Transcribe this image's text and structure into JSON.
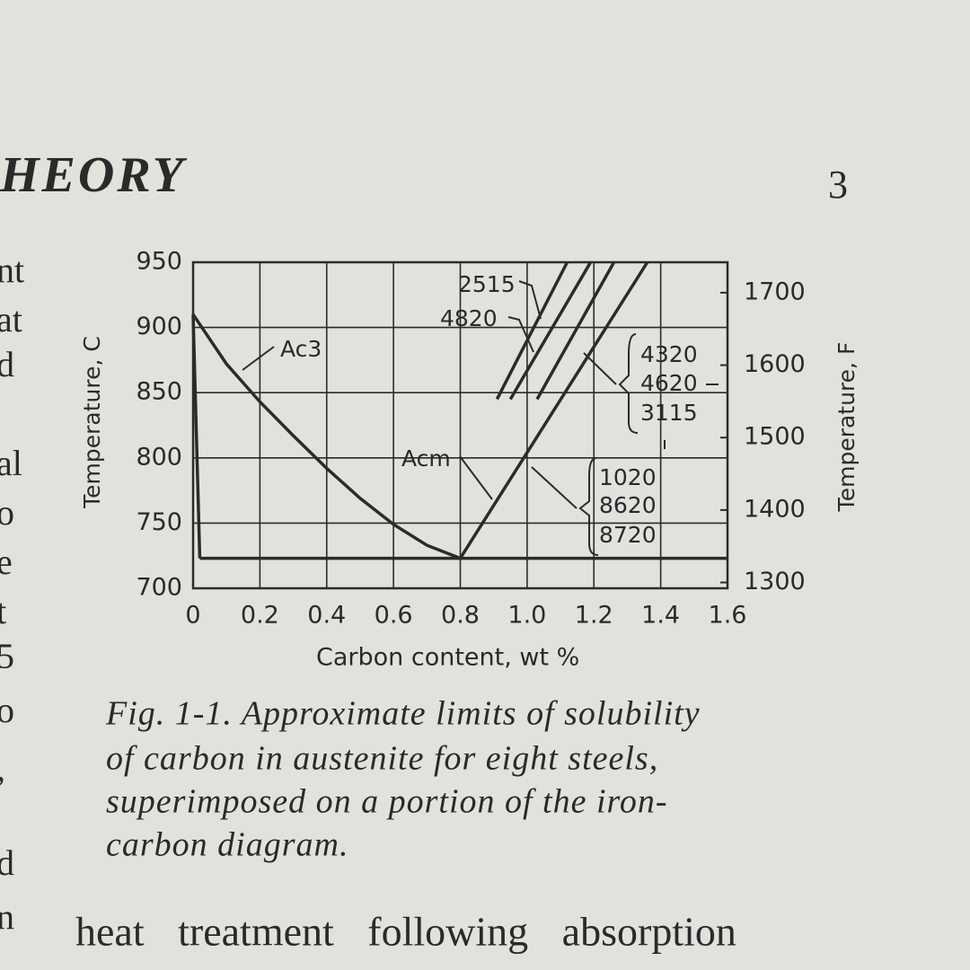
{
  "header": {
    "title": "HEORY",
    "page_number": "3"
  },
  "margin_fragments": [
    "nt",
    "at",
    "d",
    "al",
    "o",
    "e",
    "t",
    "5",
    "o",
    ",",
    "d",
    "n"
  ],
  "chart_data": {
    "type": "line",
    "xlabel": "Carbon content, wt %",
    "ylabel": "Temperature, C",
    "y2label": "Temperature, F",
    "xlim": [
      0,
      1.6
    ],
    "xticks": [
      0,
      0.2,
      0.4,
      0.6,
      0.8,
      {
        "value": 1,
        "label": "1.0"
      },
      1.2,
      1.4,
      1.6
    ],
    "ylim": [
      700,
      950
    ],
    "yticks": [
      700,
      750,
      800,
      850,
      900,
      950
    ],
    "y2lim": [
      1292,
      1742
    ],
    "y2ticks": [
      1300,
      1400,
      1500,
      1600,
      1700
    ],
    "grid": true,
    "color": "#2b2b2b",
    "series": [
      {
        "name": "Ac3",
        "x": [
          0,
          0.1,
          0.2,
          0.3,
          0.4,
          0.5,
          0.6,
          0.7,
          0.8
        ],
        "values": [
          910,
          872,
          843,
          817,
          792,
          769,
          749,
          733,
          723
        ]
      },
      {
        "name": "Acm",
        "x": [
          0.8,
          1.36
        ],
        "values": [
          723,
          950
        ]
      },
      {
        "x": [
          0,
          0.02
        ],
        "values": [
          910,
          723
        ]
      },
      {
        "x": [
          0.02,
          1.6
        ],
        "values": [
          723,
          723
        ]
      },
      {
        "x": [
          0.91,
          1.12
        ],
        "values": [
          845,
          950
        ]
      },
      {
        "x": [
          0.95,
          1.19
        ],
        "values": [
          845,
          950
        ]
      },
      {
        "x": [
          1.03,
          1.26
        ],
        "values": [
          845,
          950
        ]
      }
    ],
    "annotations": [
      "2515",
      "4820",
      "4320",
      "4620",
      "3115",
      "1020",
      "8620",
      "8720"
    ]
  },
  "caption": [
    "Fig. 1-1. Approximate limits of solubility",
    "of carbon in austenite for eight steels,",
    "superimposed on a portion of the iron-",
    "carbon diagram."
  ],
  "body": "heat treatment following absorption"
}
